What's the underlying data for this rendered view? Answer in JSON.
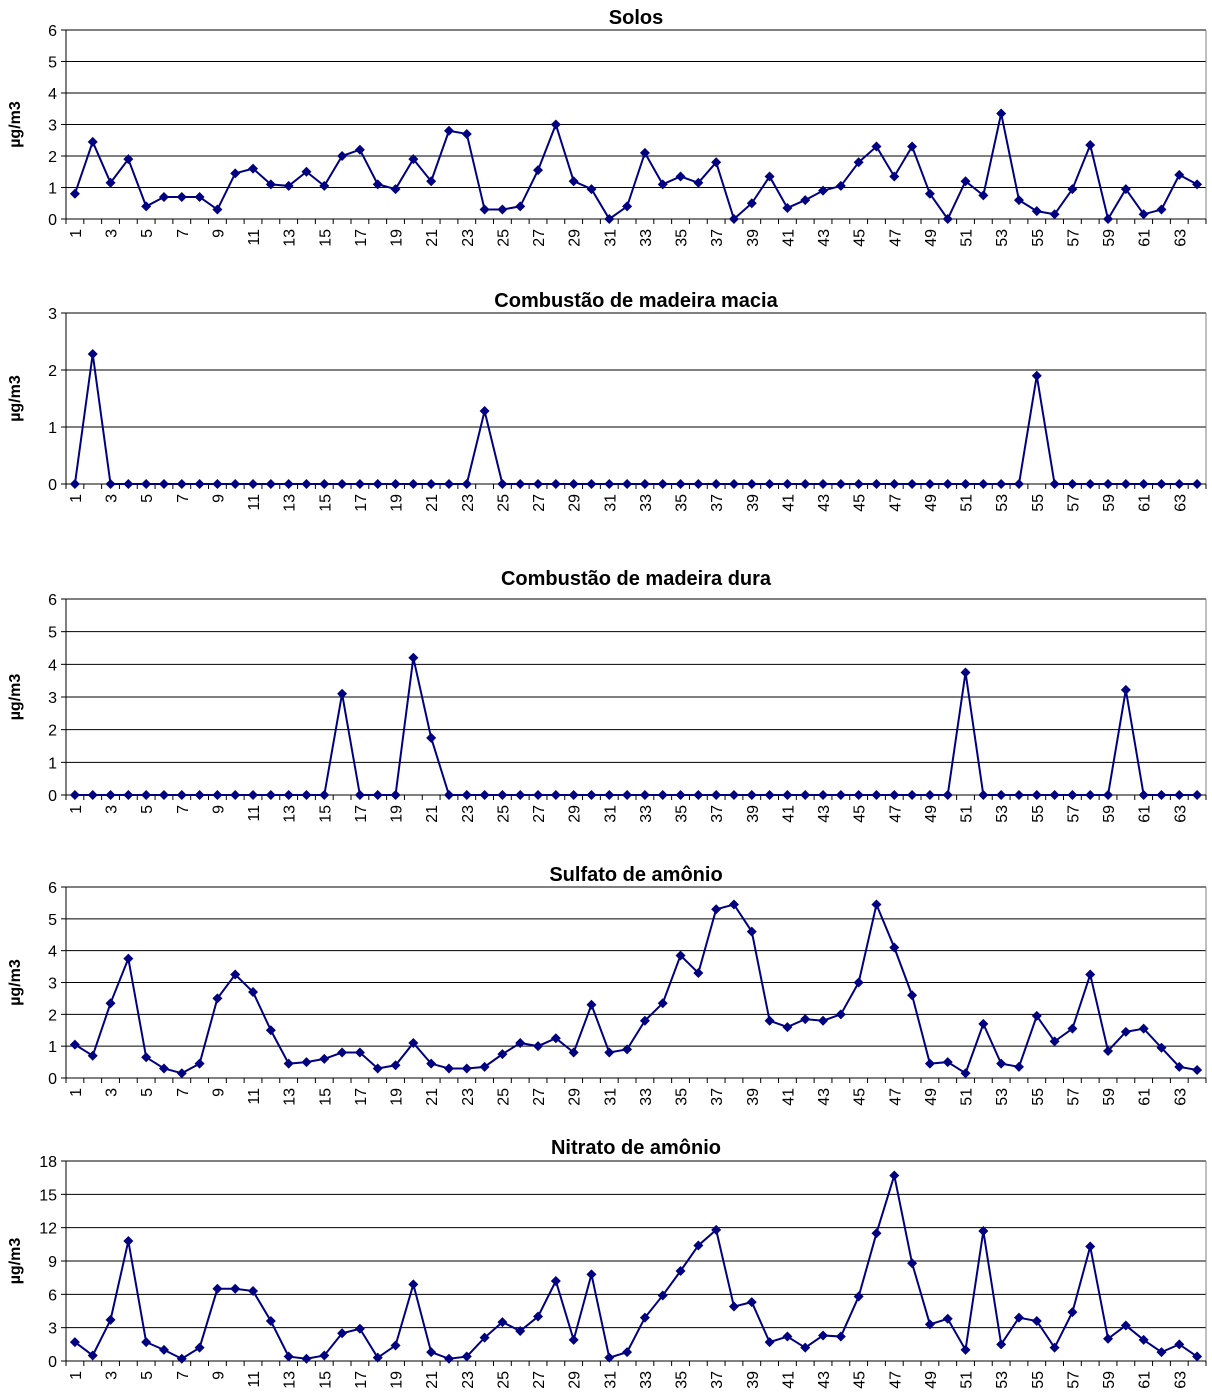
{
  "colors": {
    "series": "#000080",
    "grid": "#000000",
    "axis": "#808080"
  },
  "chart_data": [
    {
      "type": "line",
      "title": "Solos",
      "ylabel": "µg/m3",
      "xlabel": "",
      "ylim": [
        0,
        6
      ],
      "yticks": [
        0,
        1,
        2,
        3,
        4,
        5,
        6
      ],
      "x": [
        1,
        2,
        3,
        4,
        5,
        6,
        7,
        8,
        9,
        10,
        11,
        12,
        13,
        14,
        15,
        16,
        17,
        18,
        19,
        20,
        21,
        22,
        23,
        24,
        25,
        26,
        27,
        28,
        29,
        30,
        31,
        32,
        33,
        34,
        35,
        36,
        37,
        38,
        39,
        40,
        41,
        42,
        43,
        44,
        45,
        46,
        47,
        48,
        49,
        50,
        51,
        52,
        53,
        54,
        55,
        56,
        57,
        58,
        59,
        60,
        61,
        62,
        63,
        64
      ],
      "xtick_labels": [
        "1",
        "3",
        "5",
        "7",
        "9",
        "11",
        "13",
        "15",
        "17",
        "19",
        "21",
        "23",
        "25",
        "27",
        "29",
        "31",
        "33",
        "35",
        "37",
        "39",
        "41",
        "43",
        "45",
        "47",
        "49",
        "51",
        "53",
        "55",
        "57",
        "59",
        "61",
        "63"
      ],
      "grid": true,
      "legend": "none",
      "series": [
        {
          "values": [
            0.8,
            2.45,
            1.15,
            1.9,
            0.4,
            0.7,
            0.7,
            0.7,
            0.3,
            1.45,
            1.6,
            1.1,
            1.05,
            1.5,
            1.05,
            2.0,
            2.2,
            1.1,
            0.95,
            1.9,
            1.2,
            2.8,
            2.7,
            0.3,
            0.3,
            0.4,
            1.55,
            3.0,
            1.2,
            0.95,
            0.0,
            0.4,
            2.1,
            1.1,
            1.35,
            1.15,
            1.8,
            0.0,
            0.5,
            1.35,
            0.35,
            0.6,
            0.9,
            1.05,
            1.8,
            2.3,
            1.35,
            2.3,
            0.8,
            0.0,
            1.2,
            0.75,
            3.35,
            0.6,
            0.25,
            0.15,
            0.95,
            2.35,
            0.0,
            0.95,
            0.15,
            0.3,
            1.4,
            1.1
          ]
        }
      ]
    },
    {
      "type": "line",
      "title": "Combustão de madeira macia",
      "ylabel": "µg/m3",
      "xlabel": "",
      "ylim": [
        0,
        3
      ],
      "yticks": [
        0,
        1,
        2,
        3
      ],
      "x": [
        1,
        2,
        3,
        4,
        5,
        6,
        7,
        8,
        9,
        10,
        11,
        12,
        13,
        14,
        15,
        16,
        17,
        18,
        19,
        20,
        21,
        22,
        23,
        24,
        25,
        26,
        27,
        28,
        29,
        30,
        31,
        32,
        33,
        34,
        35,
        36,
        37,
        38,
        39,
        40,
        41,
        42,
        43,
        44,
        45,
        46,
        47,
        48,
        49,
        50,
        51,
        52,
        53,
        54,
        55,
        56,
        57,
        58,
        59,
        60,
        61,
        62,
        63,
        64
      ],
      "xtick_labels": [
        "1",
        "3",
        "5",
        "7",
        "9",
        "11",
        "13",
        "15",
        "17",
        "19",
        "21",
        "23",
        "25",
        "27",
        "29",
        "31",
        "33",
        "35",
        "37",
        "39",
        "41",
        "43",
        "45",
        "47",
        "49",
        "51",
        "53",
        "55",
        "57",
        "59",
        "61",
        "63"
      ],
      "grid": true,
      "legend": "none",
      "series": [
        {
          "values": [
            0,
            2.28,
            0,
            0,
            0,
            0,
            0,
            0,
            0,
            0,
            0,
            0,
            0,
            0,
            0,
            0,
            0,
            0,
            0,
            0,
            0,
            0,
            0,
            1.28,
            0,
            0,
            0,
            0,
            0,
            0,
            0,
            0,
            0,
            0,
            0,
            0,
            0,
            0,
            0,
            0,
            0,
            0,
            0,
            0,
            0,
            0,
            0,
            0,
            0,
            0,
            0,
            0,
            0,
            0,
            1.9,
            0,
            0,
            0,
            0,
            0,
            0,
            0,
            0,
            0
          ]
        }
      ]
    },
    {
      "type": "line",
      "title": "Combustão de madeira dura",
      "ylabel": "µg/m3",
      "xlabel": "",
      "ylim": [
        0,
        6
      ],
      "yticks": [
        0,
        1,
        2,
        3,
        4,
        5,
        6
      ],
      "x": [
        1,
        2,
        3,
        4,
        5,
        6,
        7,
        8,
        9,
        10,
        11,
        12,
        13,
        14,
        15,
        16,
        17,
        18,
        19,
        20,
        21,
        22,
        23,
        24,
        25,
        26,
        27,
        28,
        29,
        30,
        31,
        32,
        33,
        34,
        35,
        36,
        37,
        38,
        39,
        40,
        41,
        42,
        43,
        44,
        45,
        46,
        47,
        48,
        49,
        50,
        51,
        52,
        53,
        54,
        55,
        56,
        57,
        58,
        59,
        60,
        61,
        62,
        63,
        64
      ],
      "xtick_labels": [
        "1",
        "3",
        "5",
        "7",
        "9",
        "11",
        "13",
        "15",
        "17",
        "19",
        "21",
        "23",
        "25",
        "27",
        "29",
        "31",
        "33",
        "35",
        "37",
        "39",
        "41",
        "43",
        "45",
        "47",
        "49",
        "51",
        "53",
        "55",
        "57",
        "59",
        "61",
        "63"
      ],
      "grid": true,
      "legend": "none",
      "series": [
        {
          "values": [
            0,
            0,
            0,
            0,
            0,
            0,
            0,
            0,
            0,
            0,
            0,
            0,
            0,
            0,
            0,
            3.1,
            0,
            0,
            0,
            4.2,
            1.75,
            0,
            0,
            0,
            0,
            0,
            0,
            0,
            0,
            0,
            0,
            0,
            0,
            0,
            0,
            0,
            0,
            0,
            0,
            0,
            0,
            0,
            0,
            0,
            0,
            0,
            0,
            0,
            0,
            0,
            3.75,
            0,
            0,
            0,
            0,
            0,
            0,
            0,
            0,
            3.22,
            0,
            0,
            0,
            0
          ]
        }
      ]
    },
    {
      "type": "line",
      "title": "Sulfato de amônio",
      "ylabel": "µg/m3",
      "xlabel": "",
      "ylim": [
        0,
        6
      ],
      "yticks": [
        0,
        1,
        2,
        3,
        4,
        5,
        6
      ],
      "x": [
        1,
        2,
        3,
        4,
        5,
        6,
        7,
        8,
        9,
        10,
        11,
        12,
        13,
        14,
        15,
        16,
        17,
        18,
        19,
        20,
        21,
        22,
        23,
        24,
        25,
        26,
        27,
        28,
        29,
        30,
        31,
        32,
        33,
        34,
        35,
        36,
        37,
        38,
        39,
        40,
        41,
        42,
        43,
        44,
        45,
        46,
        47,
        48,
        49,
        50,
        51,
        52,
        53,
        54,
        55,
        56,
        57,
        58,
        59,
        60,
        61,
        62,
        63,
        64
      ],
      "xtick_labels": [
        "1",
        "3",
        "5",
        "7",
        "9",
        "11",
        "13",
        "15",
        "17",
        "19",
        "21",
        "23",
        "25",
        "27",
        "29",
        "31",
        "33",
        "35",
        "37",
        "39",
        "41",
        "43",
        "45",
        "47",
        "49",
        "51",
        "53",
        "55",
        "57",
        "59",
        "61",
        "63"
      ],
      "grid": true,
      "legend": "none",
      "series": [
        {
          "values": [
            1.05,
            0.7,
            2.35,
            3.75,
            0.65,
            0.3,
            0.15,
            0.45,
            2.5,
            3.25,
            2.7,
            1.5,
            0.45,
            0.5,
            0.6,
            0.8,
            0.8,
            0.3,
            0.4,
            1.1,
            0.45,
            0.3,
            0.3,
            0.35,
            0.75,
            1.1,
            1.0,
            1.25,
            0.8,
            2.3,
            0.8,
            0.9,
            1.8,
            2.35,
            3.85,
            3.3,
            5.3,
            5.45,
            4.6,
            1.8,
            1.6,
            1.85,
            1.8,
            2.0,
            3.0,
            5.45,
            4.1,
            2.6,
            0.45,
            0.5,
            0.15,
            1.7,
            0.45,
            0.35,
            1.95,
            1.15,
            1.55,
            3.25,
            0.85,
            1.45,
            1.55,
            0.95,
            0.35,
            0.25
          ]
        }
      ]
    },
    {
      "type": "line",
      "title": "Nitrato de amônio",
      "ylabel": "µg/m3",
      "xlabel": "",
      "ylim": [
        0,
        18
      ],
      "yticks": [
        0,
        3,
        6,
        9,
        12,
        15,
        18
      ],
      "x": [
        1,
        2,
        3,
        4,
        5,
        6,
        7,
        8,
        9,
        10,
        11,
        12,
        13,
        14,
        15,
        16,
        17,
        18,
        19,
        20,
        21,
        22,
        23,
        24,
        25,
        26,
        27,
        28,
        29,
        30,
        31,
        32,
        33,
        34,
        35,
        36,
        37,
        38,
        39,
        40,
        41,
        42,
        43,
        44,
        45,
        46,
        47,
        48,
        49,
        50,
        51,
        52,
        53,
        54,
        55,
        56,
        57,
        58,
        59,
        60,
        61,
        62,
        63,
        64
      ],
      "xtick_labels": [
        "1",
        "3",
        "5",
        "7",
        "9",
        "11",
        "13",
        "15",
        "17",
        "19",
        "21",
        "23",
        "25",
        "27",
        "29",
        "31",
        "33",
        "35",
        "37",
        "39",
        "41",
        "43",
        "45",
        "47",
        "49",
        "51",
        "53",
        "55",
        "57",
        "59",
        "61",
        "63"
      ],
      "grid": true,
      "legend": "none",
      "series": [
        {
          "values": [
            1.7,
            0.5,
            3.7,
            10.8,
            1.7,
            1.0,
            0.2,
            1.2,
            6.5,
            6.5,
            6.3,
            3.6,
            0.4,
            0.2,
            0.5,
            2.5,
            2.9,
            0.3,
            1.4,
            6.9,
            0.8,
            0.2,
            0.4,
            2.1,
            3.5,
            2.7,
            4.0,
            7.2,
            1.9,
            7.8,
            0.3,
            0.8,
            3.9,
            5.9,
            8.1,
            10.4,
            11.8,
            4.9,
            5.3,
            1.7,
            2.2,
            1.2,
            2.3,
            2.2,
            5.8,
            11.5,
            16.7,
            8.8,
            3.3,
            3.8,
            1.0,
            11.7,
            1.5,
            3.9,
            3.6,
            1.2,
            4.4,
            10.3,
            2.0,
            3.2,
            1.9,
            0.8,
            1.5,
            0.4
          ]
        }
      ]
    }
  ]
}
